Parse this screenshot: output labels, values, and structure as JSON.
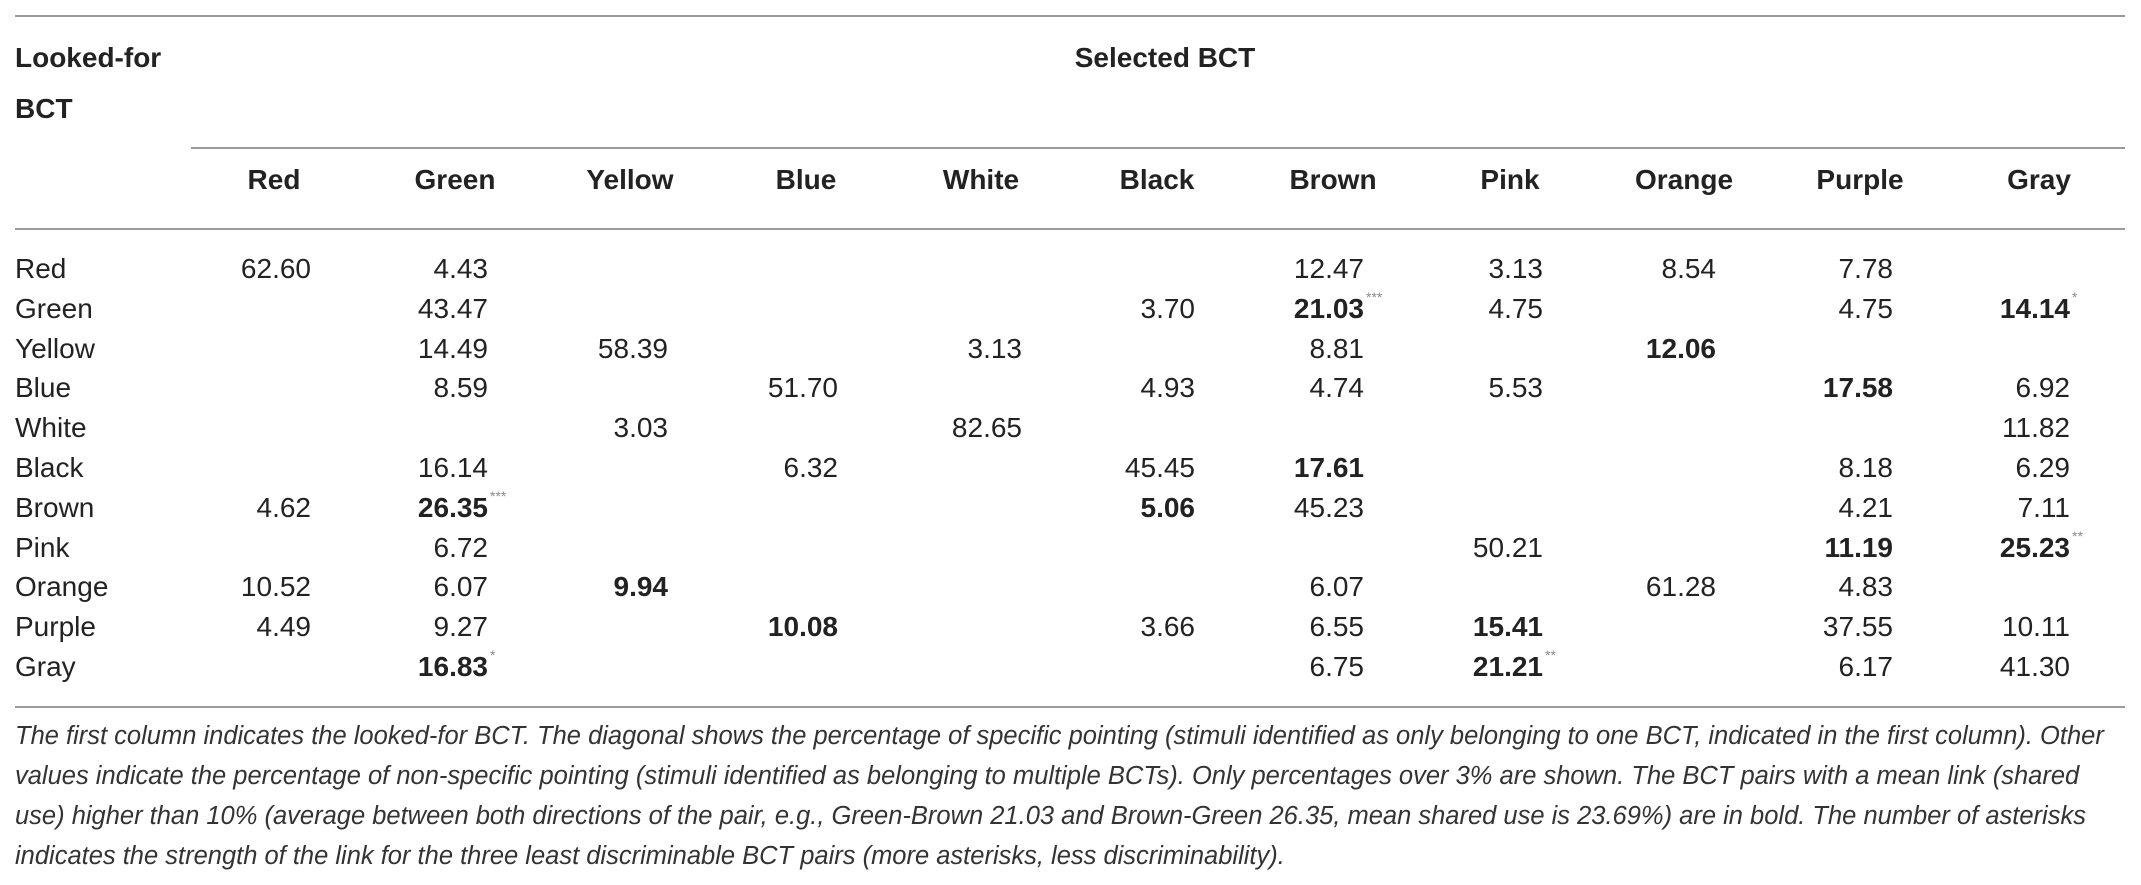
{
  "table": {
    "row_header": [
      "Looked-for",
      "BCT"
    ],
    "selected_header": "Selected BCT",
    "columns": [
      "Red",
      "Green",
      "Yellow",
      "Blue",
      "White",
      "Black",
      "Brown",
      "Pink",
      "Orange",
      "Purple",
      "Gray"
    ],
    "rows": [
      {
        "label": "Red",
        "cells": [
          {
            "col": 0,
            "v": "62.60"
          },
          {
            "col": 1,
            "v": "4.43"
          },
          {
            "col": 6,
            "v": "12.47"
          },
          {
            "col": 7,
            "v": "3.13"
          },
          {
            "col": 8,
            "v": "8.54"
          },
          {
            "col": 9,
            "v": "7.78"
          }
        ]
      },
      {
        "label": "Green",
        "cells": [
          {
            "col": 1,
            "v": "43.47"
          },
          {
            "col": 5,
            "v": "3.70"
          },
          {
            "col": 6,
            "v": "21.03",
            "bold": true,
            "stars": "***"
          },
          {
            "col": 7,
            "v": "4.75"
          },
          {
            "col": 9,
            "v": "4.75"
          },
          {
            "col": 10,
            "v": "14.14",
            "bold": true,
            "stars": "*"
          }
        ]
      },
      {
        "label": "Yellow",
        "cells": [
          {
            "col": 1,
            "v": "14.49"
          },
          {
            "col": 2,
            "v": "58.39"
          },
          {
            "col": 4,
            "v": "3.13"
          },
          {
            "col": 6,
            "v": "8.81"
          },
          {
            "col": 8,
            "v": "12.06",
            "bold": true
          }
        ]
      },
      {
        "label": "Blue",
        "cells": [
          {
            "col": 1,
            "v": "8.59"
          },
          {
            "col": 3,
            "v": "51.70"
          },
          {
            "col": 5,
            "v": "4.93"
          },
          {
            "col": 6,
            "v": "4.74"
          },
          {
            "col": 7,
            "v": "5.53"
          },
          {
            "col": 9,
            "v": "17.58",
            "bold": true
          },
          {
            "col": 10,
            "v": "6.92"
          }
        ]
      },
      {
        "label": "White",
        "cells": [
          {
            "col": 2,
            "v": "3.03"
          },
          {
            "col": 4,
            "v": "82.65"
          },
          {
            "col": 10,
            "v": "11.82"
          }
        ]
      },
      {
        "label": "Black",
        "cells": [
          {
            "col": 1,
            "v": "16.14"
          },
          {
            "col": 3,
            "v": "6.32"
          },
          {
            "col": 5,
            "v": "45.45"
          },
          {
            "col": 6,
            "v": "17.61",
            "bold": true
          },
          {
            "col": 9,
            "v": "8.18"
          },
          {
            "col": 10,
            "v": "6.29"
          }
        ]
      },
      {
        "label": "Brown",
        "cells": [
          {
            "col": 0,
            "v": "4.62"
          },
          {
            "col": 1,
            "v": "26.35",
            "bold": true,
            "stars": "***"
          },
          {
            "col": 5,
            "v": "5.06",
            "bold": true
          },
          {
            "col": 6,
            "v": "45.23"
          },
          {
            "col": 9,
            "v": "4.21"
          },
          {
            "col": 10,
            "v": "7.11"
          }
        ]
      },
      {
        "label": "Pink",
        "cells": [
          {
            "col": 1,
            "v": "6.72"
          },
          {
            "col": 7,
            "v": "50.21"
          },
          {
            "col": 9,
            "v": "11.19",
            "bold": true
          },
          {
            "col": 10,
            "v": "25.23",
            "bold": true,
            "stars": "**"
          }
        ]
      },
      {
        "label": "Orange",
        "cells": [
          {
            "col": 0,
            "v": "10.52"
          },
          {
            "col": 1,
            "v": "6.07"
          },
          {
            "col": 2,
            "v": "9.94",
            "bold": true
          },
          {
            "col": 6,
            "v": "6.07"
          },
          {
            "col": 8,
            "v": "61.28"
          },
          {
            "col": 9,
            "v": "4.83"
          }
        ]
      },
      {
        "label": "Purple",
        "cells": [
          {
            "col": 0,
            "v": "4.49"
          },
          {
            "col": 1,
            "v": "9.27"
          },
          {
            "col": 3,
            "v": "10.08",
            "bold": true
          },
          {
            "col": 5,
            "v": "3.66"
          },
          {
            "col": 6,
            "v": "6.55"
          },
          {
            "col": 7,
            "v": "15.41",
            "bold": true
          },
          {
            "col": 9,
            "v": "37.55"
          },
          {
            "col": 10,
            "v": "10.11"
          }
        ]
      },
      {
        "label": "Gray",
        "cells": [
          {
            "col": 1,
            "v": "16.83",
            "bold": true,
            "stars": "*"
          },
          {
            "col": 6,
            "v": "6.75"
          },
          {
            "col": 7,
            "v": "21.21",
            "bold": true,
            "stars": "**"
          },
          {
            "col": 9,
            "v": "6.17"
          },
          {
            "col": 10,
            "v": "41.30"
          }
        ]
      }
    ]
  },
  "footnote": "The first column indicates the looked-for BCT. The diagonal shows the percentage of specific pointing (stimuli identified as only belonging to one BCT, indicated in the first column). Other values indicate the percentage of non-specific pointing (stimuli identified as belonging to multiple BCTs). Only percentages over 3% are shown. The BCT pairs with a mean link (shared use) higher than 10% (average between both directions of the pair, e.g., Green-Brown 21.03 and Brown-Green 26.35, mean shared use is 23.69%) are in bold. The number of asterisks indicates the strength of the link for the three least discriminable BCT pairs (more asterisks, less discriminability)."
}
